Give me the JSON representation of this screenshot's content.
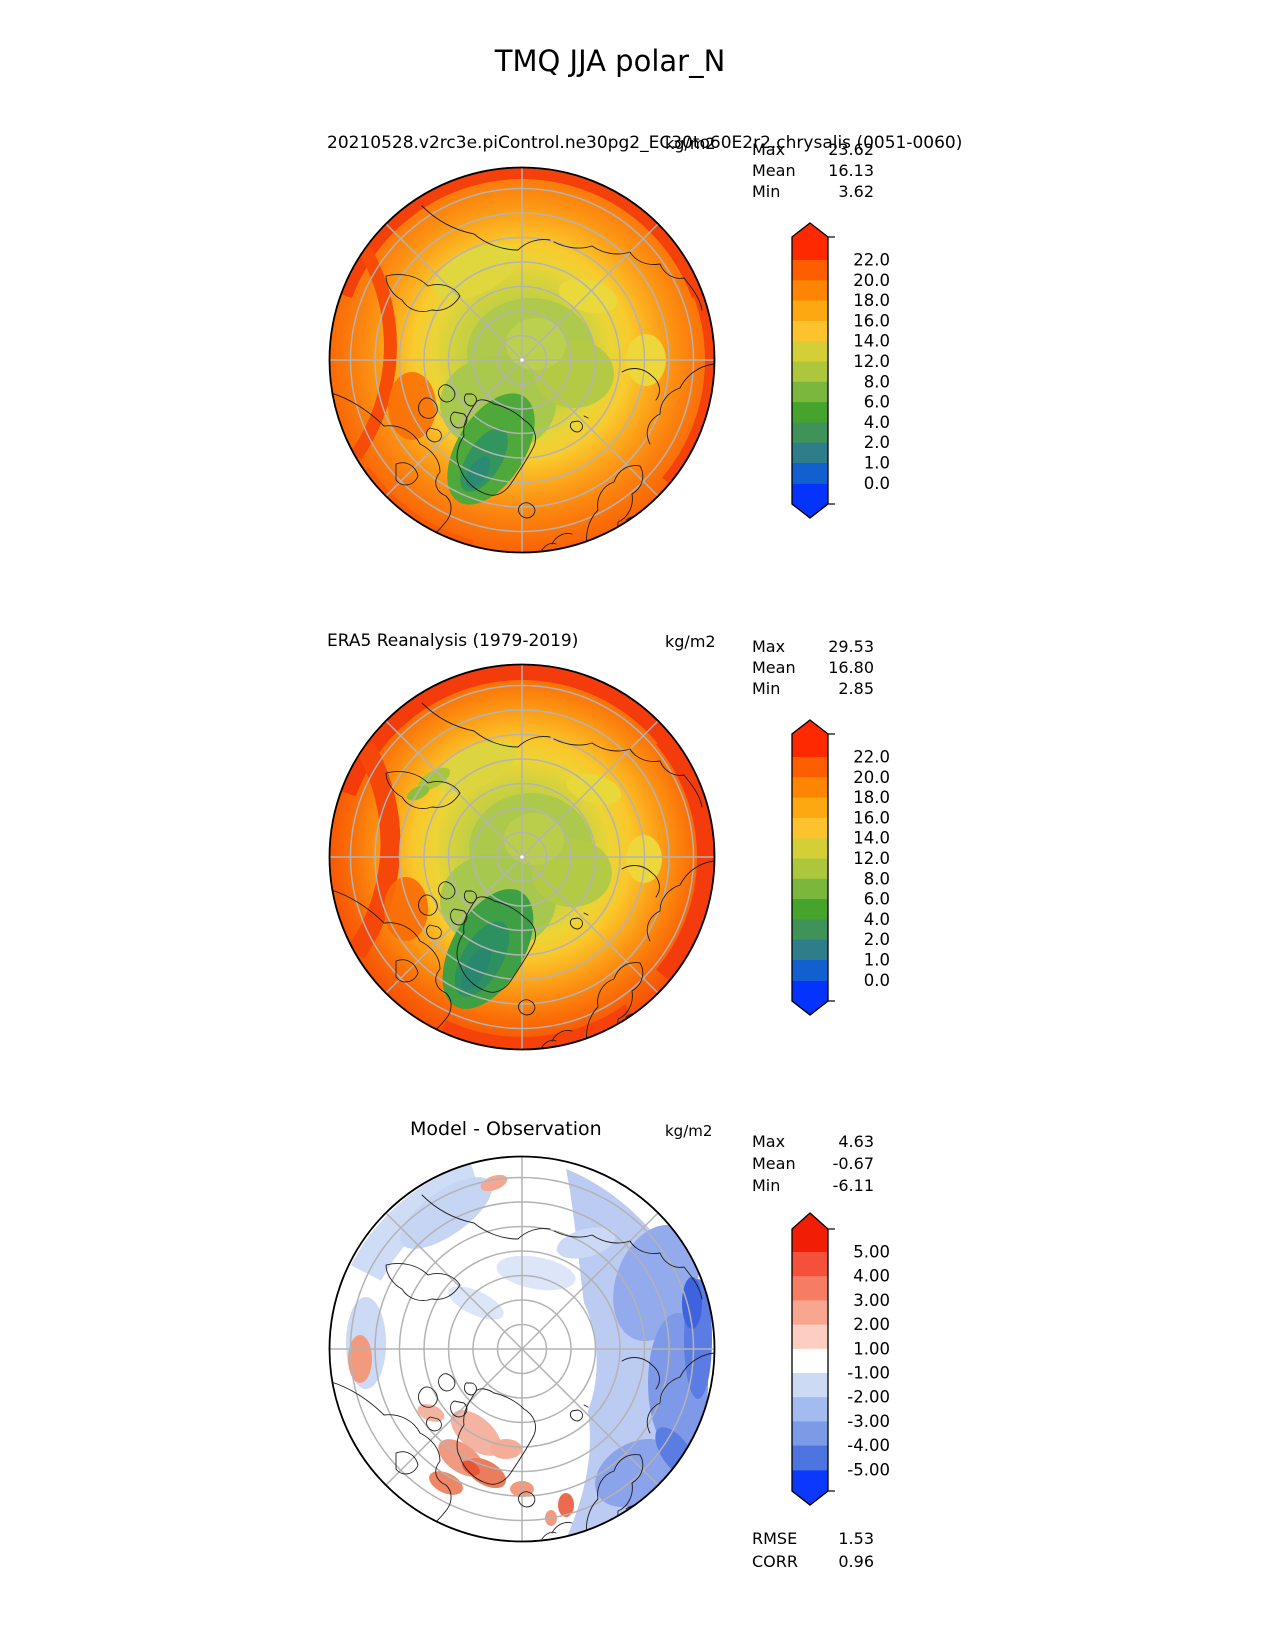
{
  "page_title": "TMQ JJA polar_N",
  "panels": [
    {
      "title": "20210528.v2rc3e.piControl.ne30pg2_EC30to60E2r2.chrysalis (0051-0060)",
      "units": "kg/m2",
      "stats": [
        {
          "label": "Max",
          "value": "23.62"
        },
        {
          "label": "Mean",
          "value": "16.13"
        },
        {
          "label": "Min",
          "value": "3.62"
        }
      ]
    },
    {
      "title": "ERA5 Reanalysis (1979-2019)",
      "units": "kg/m2",
      "stats": [
        {
          "label": "Max",
          "value": "29.53"
        },
        {
          "label": "Mean",
          "value": "16.80"
        },
        {
          "label": "Min",
          "value": "2.85"
        }
      ]
    },
    {
      "title": "Model - Observation",
      "units": "kg/m2",
      "stats": [
        {
          "label": "Max",
          "value": "4.63"
        },
        {
          "label": "Mean",
          "value": "-0.67"
        },
        {
          "label": "Min",
          "value": "-6.11"
        }
      ],
      "metrics": [
        {
          "label": "RMSE",
          "value": "1.53"
        },
        {
          "label": "CORR",
          "value": "0.96"
        }
      ]
    }
  ],
  "chart_data": [
    {
      "type": "heatmap",
      "projection": "north_polar_stereographic",
      "variable": "TMQ",
      "season": "JJA",
      "region": "polar_N",
      "title": "20210528.v2rc3e.piControl.ne30pg2_EC30to60E2r2.chrysalis (0051-0060)",
      "units": "kg/m2",
      "stats": {
        "max": 23.62,
        "mean": 16.13,
        "min": 3.62
      },
      "levels": [
        0.0,
        1.0,
        2.0,
        4.0,
        6.0,
        8.0,
        12.0,
        14.0,
        16.0,
        18.0,
        20.0,
        22.0
      ],
      "colorbar": {
        "tick_labels_top_to_bottom": [
          "22.0",
          "20.0",
          "18.0",
          "16.0",
          "14.0",
          "12.0",
          "8.0",
          "6.0",
          "4.0",
          "2.0",
          "1.0",
          "0.0"
        ],
        "band_colors_top_to_bottom": [
          "#fe5d00",
          "#fe8504",
          "#fea811",
          "#fdc32e",
          "#d5cf37",
          "#adc73c",
          "#7cb73d",
          "#46a42c",
          "#3f9358",
          "#2d7e8a",
          "#1060d0"
        ],
        "extend_color_top": "#fe2900",
        "extend_color_bottom": "#0533fe",
        "extend": "both"
      }
    },
    {
      "type": "heatmap",
      "projection": "north_polar_stereographic",
      "variable": "TMQ",
      "season": "JJA",
      "region": "polar_N",
      "title": "ERA5 Reanalysis (1979-2019)",
      "units": "kg/m2",
      "stats": {
        "max": 29.53,
        "mean": 16.8,
        "min": 2.85
      },
      "levels": [
        0.0,
        1.0,
        2.0,
        4.0,
        6.0,
        8.0,
        12.0,
        14.0,
        16.0,
        18.0,
        20.0,
        22.0
      ],
      "colorbar": {
        "tick_labels_top_to_bottom": [
          "22.0",
          "20.0",
          "18.0",
          "16.0",
          "14.0",
          "12.0",
          "8.0",
          "6.0",
          "4.0",
          "2.0",
          "1.0",
          "0.0"
        ],
        "band_colors_top_to_bottom": [
          "#fe5d00",
          "#fe8504",
          "#fea811",
          "#fdc32e",
          "#d5cf37",
          "#adc73c",
          "#7cb73d",
          "#46a42c",
          "#3f9358",
          "#2d7e8a",
          "#1060d0"
        ],
        "extend_color_top": "#fe2900",
        "extend_color_bottom": "#0533fe",
        "extend": "both"
      }
    },
    {
      "type": "heatmap",
      "projection": "north_polar_stereographic",
      "variable": "TMQ difference",
      "season": "JJA",
      "region": "polar_N",
      "title": "Model - Observation",
      "units": "kg/m2",
      "stats": {
        "max": 4.63,
        "mean": -0.67,
        "min": -6.11
      },
      "metrics": {
        "rmse": 1.53,
        "corr": 0.96
      },
      "levels": [
        -5.0,
        -4.0,
        -3.0,
        -2.0,
        -1.0,
        1.0,
        2.0,
        3.0,
        4.0,
        5.0
      ],
      "colorbar": {
        "tick_labels_top_to_bottom": [
          "5.00",
          "4.00",
          "3.00",
          "2.00",
          "1.00",
          "-1.00",
          "-2.00",
          "-3.00",
          "-4.00",
          "-5.00"
        ],
        "band_colors_top_to_bottom": [
          "#f4503a",
          "#f67c64",
          "#f9a691",
          "#fccdc0",
          "#ffffff",
          "#ccdaf4",
          "#a3bbee",
          "#7b9be7",
          "#4e74e0"
        ],
        "extend_color_top": "#f11d04",
        "extend_color_bottom": "#0a38fd",
        "extend": "both"
      }
    }
  ]
}
